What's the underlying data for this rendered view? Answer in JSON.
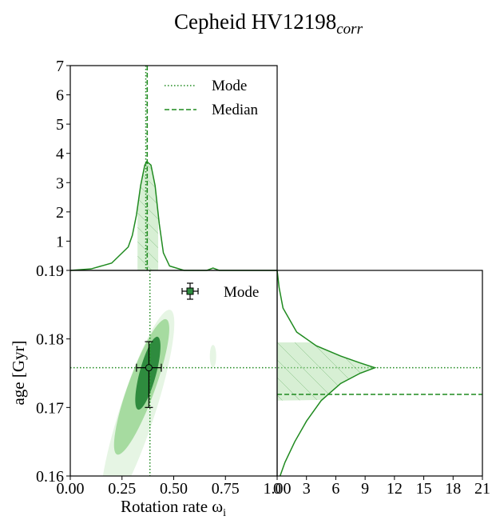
{
  "chart_data": {
    "type": "corner-plot",
    "title": "Cepheid HV12198",
    "title_subscript": "corr",
    "colors": {
      "line": "#1f8a1f",
      "contour_light": "#e6f5e4",
      "contour_mid": "#a6dba0",
      "contour_dark": "#2e8b3e",
      "marker": "#000000"
    },
    "top_panel": {
      "xlim": [
        0.0,
        1.0
      ],
      "ylim": [
        0,
        7
      ],
      "yticks": [
        "1",
        "2",
        "3",
        "4",
        "5",
        "6",
        "7"
      ],
      "mode_x": 0.365,
      "median_x": 0.372,
      "hpd_range": [
        0.325,
        0.425
      ],
      "density_curve": [
        [
          0.0,
          0.0
        ],
        [
          0.1,
          0.05
        ],
        [
          0.2,
          0.25
        ],
        [
          0.28,
          0.8
        ],
        [
          0.3,
          1.2
        ],
        [
          0.32,
          1.9
        ],
        [
          0.34,
          2.9
        ],
        [
          0.36,
          3.6
        ],
        [
          0.37,
          3.72
        ],
        [
          0.39,
          3.6
        ],
        [
          0.41,
          2.9
        ],
        [
          0.43,
          1.6
        ],
        [
          0.45,
          0.6
        ],
        [
          0.48,
          0.15
        ],
        [
          0.55,
          0.0
        ],
        [
          0.66,
          0.0
        ],
        [
          0.69,
          0.08
        ],
        [
          0.72,
          0.0
        ],
        [
          1.0,
          0.0
        ]
      ],
      "legend": [
        "Mode",
        "Median"
      ]
    },
    "main_panel": {
      "xlabel": "Rotation rate ω",
      "xlabel_subscript": "i",
      "ylabel": "age [Gyr]",
      "xlim": [
        0.0,
        1.0
      ],
      "ylim": [
        0.16,
        0.19
      ],
      "xticks": [
        "0.00",
        "0.25",
        "0.50",
        "0.75",
        "1.00"
      ],
      "yticks": [
        "0.16",
        "0.17",
        "0.18",
        "0.19"
      ],
      "mode_point": {
        "x": 0.38,
        "y": 0.1758,
        "xerr": 0.06,
        "yerr_low": 0.0058,
        "yerr_high": 0.0038
      },
      "mode_vline_x": 0.385,
      "mode_hline_y": 0.1758,
      "legend": [
        "Mode"
      ]
    },
    "right_panel": {
      "xlim": [
        0,
        21
      ],
      "xticks": [
        "0",
        "3",
        "6",
        "9",
        "12",
        "15",
        "18",
        "21"
      ],
      "mode_y": 0.1758,
      "median_y": 0.1719,
      "hpd_range": [
        0.171,
        0.1795
      ],
      "density_curve": [
        [
          0.0,
          0.19
        ],
        [
          0.2,
          0.1875
        ],
        [
          0.6,
          0.1845
        ],
        [
          2.0,
          0.181
        ],
        [
          4.0,
          0.179
        ],
        [
          6.5,
          0.1775
        ],
        [
          8.5,
          0.1765
        ],
        [
          10.0,
          0.1758
        ],
        [
          8.5,
          0.175
        ],
        [
          6.5,
          0.1735
        ],
        [
          4.5,
          0.171
        ],
        [
          3.0,
          0.168
        ],
        [
          1.8,
          0.165
        ],
        [
          0.8,
          0.162
        ],
        [
          0.3,
          0.16
        ]
      ]
    }
  }
}
